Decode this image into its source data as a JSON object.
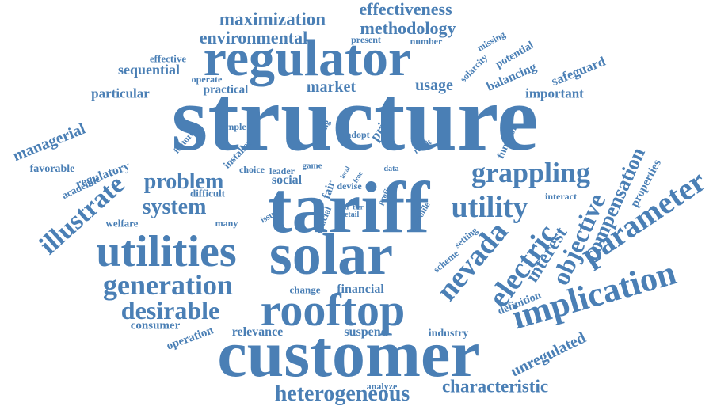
{
  "color": "#4a7fb5",
  "words": [
    {
      "text": "structure"
    },
    {
      "text": "tariff"
    },
    {
      "text": "customer"
    },
    {
      "text": "solar"
    },
    {
      "text": "regulator"
    },
    {
      "text": "rooftop"
    },
    {
      "text": "utilities"
    },
    {
      "text": "implication"
    },
    {
      "text": "parameter"
    },
    {
      "text": "generation"
    },
    {
      "text": "illustrate"
    },
    {
      "text": "grappling"
    },
    {
      "text": "utility"
    },
    {
      "text": "nevada"
    },
    {
      "text": "electric"
    },
    {
      "text": "objective"
    },
    {
      "text": "desirable"
    },
    {
      "text": "problem"
    },
    {
      "text": "system"
    },
    {
      "text": "heterogeneous"
    },
    {
      "text": "characteristic"
    },
    {
      "text": "compensation"
    },
    {
      "text": "interest"
    },
    {
      "text": "maximization"
    },
    {
      "text": "effectiveness"
    },
    {
      "text": "methodology"
    },
    {
      "text": "environmental"
    },
    {
      "text": "market"
    },
    {
      "text": "usage"
    },
    {
      "text": "managerial"
    },
    {
      "text": "unregulated"
    },
    {
      "text": "financial"
    },
    {
      "text": "relevance"
    },
    {
      "text": "suspend"
    },
    {
      "text": "sequential"
    },
    {
      "text": "particular"
    },
    {
      "text": "safeguard"
    },
    {
      "text": "important"
    },
    {
      "text": "balancing"
    },
    {
      "text": "regulatory"
    },
    {
      "text": "favorable"
    },
    {
      "text": "academic"
    },
    {
      "text": "operation"
    },
    {
      "text": "consumer"
    },
    {
      "text": "industry"
    },
    {
      "text": "properties"
    },
    {
      "text": "definition"
    },
    {
      "text": "social"
    },
    {
      "text": "practical"
    },
    {
      "text": "effective"
    },
    {
      "text": "welfare"
    },
    {
      "text": "difficult"
    },
    {
      "text": "change"
    },
    {
      "text": "potential"
    },
    {
      "text": "missing"
    },
    {
      "text": "solarcity"
    },
    {
      "text": "present"
    },
    {
      "text": "number"
    },
    {
      "text": "operate"
    },
    {
      "text": "function"
    },
    {
      "text": "installer"
    },
    {
      "text": "choice"
    },
    {
      "text": "leader"
    },
    {
      "text": "devise"
    },
    {
      "text": "game"
    },
    {
      "text": "price"
    },
    {
      "text": "adopt"
    },
    {
      "text": "finding"
    },
    {
      "text": "feature"
    },
    {
      "text": "simple"
    },
    {
      "text": "interact"
    },
    {
      "text": "analyze"
    },
    {
      "text": "setting"
    },
    {
      "text": "scheme"
    },
    {
      "text": "profile"
    },
    {
      "text": "crucial"
    },
    {
      "text": "fair"
    },
    {
      "text": "many"
    },
    {
      "text": "issue"
    },
    {
      "text": "retail"
    },
    {
      "text": "grid"
    },
    {
      "text": "tier"
    },
    {
      "text": "result"
    },
    {
      "text": "data"
    },
    {
      "text": "profit"
    },
    {
      "text": "free"
    },
    {
      "text": "local"
    }
  ]
}
